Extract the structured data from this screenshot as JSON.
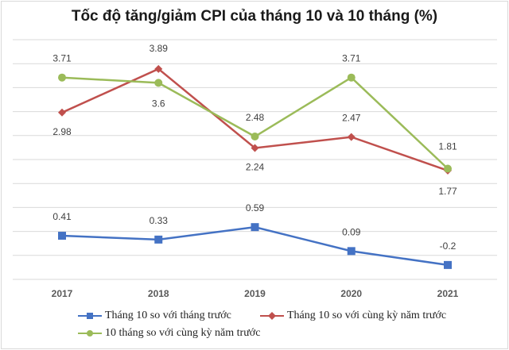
{
  "chart_data": {
    "type": "line",
    "title": "Tốc độ tăng/giảm CPI của tháng 10 và 10 tháng (%)",
    "categories": [
      "2017",
      "2018",
      "2019",
      "2020",
      "2021"
    ],
    "series": [
      {
        "name": "Tháng 10 so với tháng trước",
        "color": "#4472c4",
        "marker": "square",
        "values": [
          0.41,
          0.33,
          0.59,
          0.09,
          -0.2
        ],
        "labels": [
          "0.41",
          "0.33",
          "0.59",
          "0.09",
          "-0.2"
        ]
      },
      {
        "name": "Tháng 10 so với cùng kỳ năm trước",
        "color": "#c0504d",
        "marker": "diamond",
        "values": [
          2.98,
          3.89,
          2.24,
          2.47,
          1.77
        ],
        "labels": [
          "2.98",
          "3.89",
          "2.24",
          "2.47",
          "1.77"
        ]
      },
      {
        "name": "10 tháng so với cùng kỳ năm trước",
        "color": "#9bbb59",
        "marker": "circle",
        "values": [
          3.71,
          3.6,
          2.48,
          3.71,
          1.81
        ],
        "labels": [
          "3.71",
          "3.6",
          "2.48",
          "3.71",
          "1.81"
        ]
      }
    ],
    "xlabel": "",
    "ylabel": "",
    "ylim": [
      -0.5,
      4.5
    ],
    "grid": true,
    "legend": "bottom"
  }
}
